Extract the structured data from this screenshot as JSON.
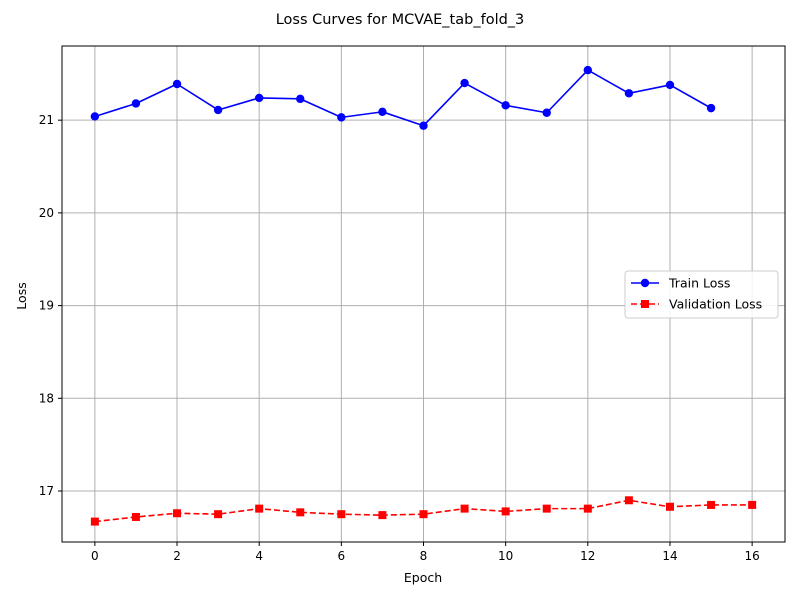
{
  "chart_data": {
    "type": "line",
    "title": "Loss Curves for MCVAE_tab_fold_3",
    "xlabel": "Epoch",
    "ylabel": "Loss",
    "xlim": [
      -0.8,
      16.8
    ],
    "ylim": [
      16.45,
      21.8
    ],
    "xticks": [
      0,
      2,
      4,
      6,
      8,
      10,
      12,
      14,
      16
    ],
    "yticks": [
      17,
      18,
      19,
      20,
      21
    ],
    "grid": true,
    "legend_position": "center-right",
    "series": [
      {
        "name": "Train Loss",
        "color": "#0000ff",
        "linestyle": "solid",
        "marker": "circle",
        "x": [
          0,
          1,
          2,
          3,
          4,
          5,
          6,
          7,
          8,
          9,
          10,
          11,
          12,
          13,
          14,
          15
        ],
        "values": [
          21.04,
          21.18,
          21.39,
          21.11,
          21.24,
          21.23,
          21.03,
          21.09,
          20.94,
          21.4,
          21.16,
          21.08,
          21.54,
          21.29,
          21.38,
          21.13
        ]
      },
      {
        "name": "Validation Loss",
        "color": "#ff0000",
        "linestyle": "dashed",
        "marker": "square",
        "x": [
          0,
          1,
          2,
          3,
          4,
          5,
          6,
          7,
          8,
          9,
          10,
          11,
          12,
          13,
          14,
          15,
          16
        ],
        "values": [
          16.67,
          16.72,
          16.76,
          16.75,
          16.81,
          16.77,
          16.75,
          16.74,
          16.75,
          16.81,
          16.78,
          16.81,
          16.81,
          16.9,
          16.83,
          16.85,
          16.85
        ]
      }
    ]
  }
}
